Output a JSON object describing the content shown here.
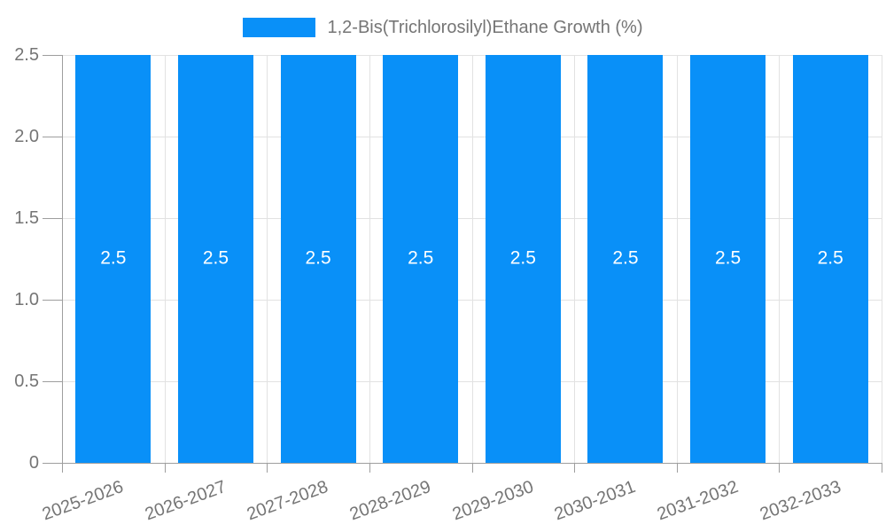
{
  "legend": {
    "label": "1,2-Bis(Trichlorosilyl)Ethane Growth (%)"
  },
  "chart_data": {
    "type": "bar",
    "title": "",
    "xlabel": "",
    "ylabel": "",
    "legend_entries": [
      "1,2-Bis(Trichlorosilyl)Ethane Growth (%)"
    ],
    "legend_position": "top-center",
    "grid": true,
    "categories": [
      "2025-2026",
      "2026-2027",
      "2027-2028",
      "2028-2029",
      "2029-2030",
      "2030-2031",
      "2031-2032",
      "2032-2033"
    ],
    "values": [
      2.5,
      2.5,
      2.5,
      2.5,
      2.5,
      2.5,
      2.5,
      2.5
    ],
    "bar_labels": [
      "2.5",
      "2.5",
      "2.5",
      "2.5",
      "2.5",
      "2.5",
      "2.5",
      "2.5"
    ],
    "ylim": [
      0,
      2.5
    ],
    "ytick_values": [
      0,
      0.5,
      1.0,
      1.5,
      2.0,
      2.5
    ],
    "ytick_labels": [
      "0",
      "0.5",
      "1.0",
      "1.5",
      "2.0",
      "2.5"
    ]
  },
  "colors": {
    "bar": "#0990f8",
    "bar_label": "#ffffff",
    "text": "#757575",
    "axis": "#9e9e9e",
    "grid": "#e2e2e2",
    "background": "#ffffff"
  }
}
